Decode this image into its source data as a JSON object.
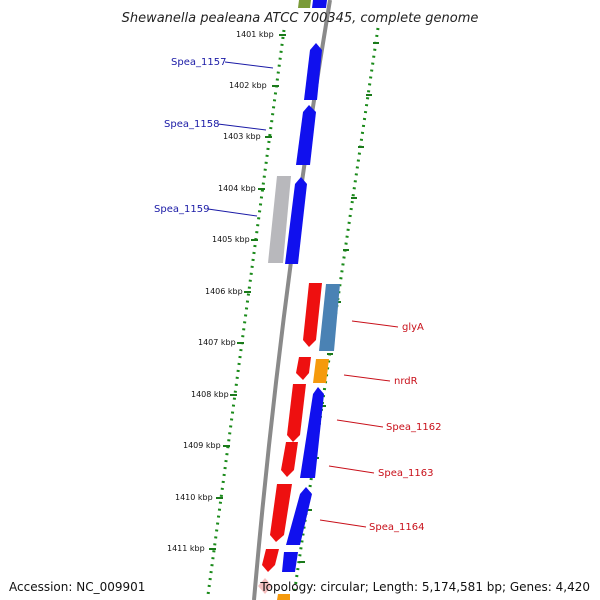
{
  "title": "Shewanella pealeana ATCC 700345, complete genome",
  "footer": {
    "accession": "Accession: NC_009901",
    "topology": "Topology: circular; Length: 5,174,581 bp; Genes: 4,420"
  },
  "colors": {
    "forward_strand": "#1010ee",
    "reverse_strand": "#ee1010",
    "backbone": "#888888",
    "tick": "#1a7a1a",
    "gene_light_blue": "#4a82b4",
    "gene_gray": "#b8b8bc",
    "gene_orange": "#f59a0c",
    "gene_olive": "#7a9a38",
    "gene_pink": "#f5c0c0"
  },
  "kbp_labels": [
    "1401 kbp",
    "1402 kbp",
    "1403 kbp",
    "1404 kbp",
    "1405 kbp",
    "1406 kbp",
    "1407 kbp",
    "1408 kbp",
    "1409 kbp",
    "1410 kbp",
    "1411 kbp"
  ],
  "gene_labels_left": [
    "Spea_1157",
    "Spea_1158",
    "Spea_1159"
  ],
  "gene_labels_right": [
    "glyA",
    "nrdR",
    "Spea_1162",
    "Spea_1163",
    "Spea_1164"
  ]
}
